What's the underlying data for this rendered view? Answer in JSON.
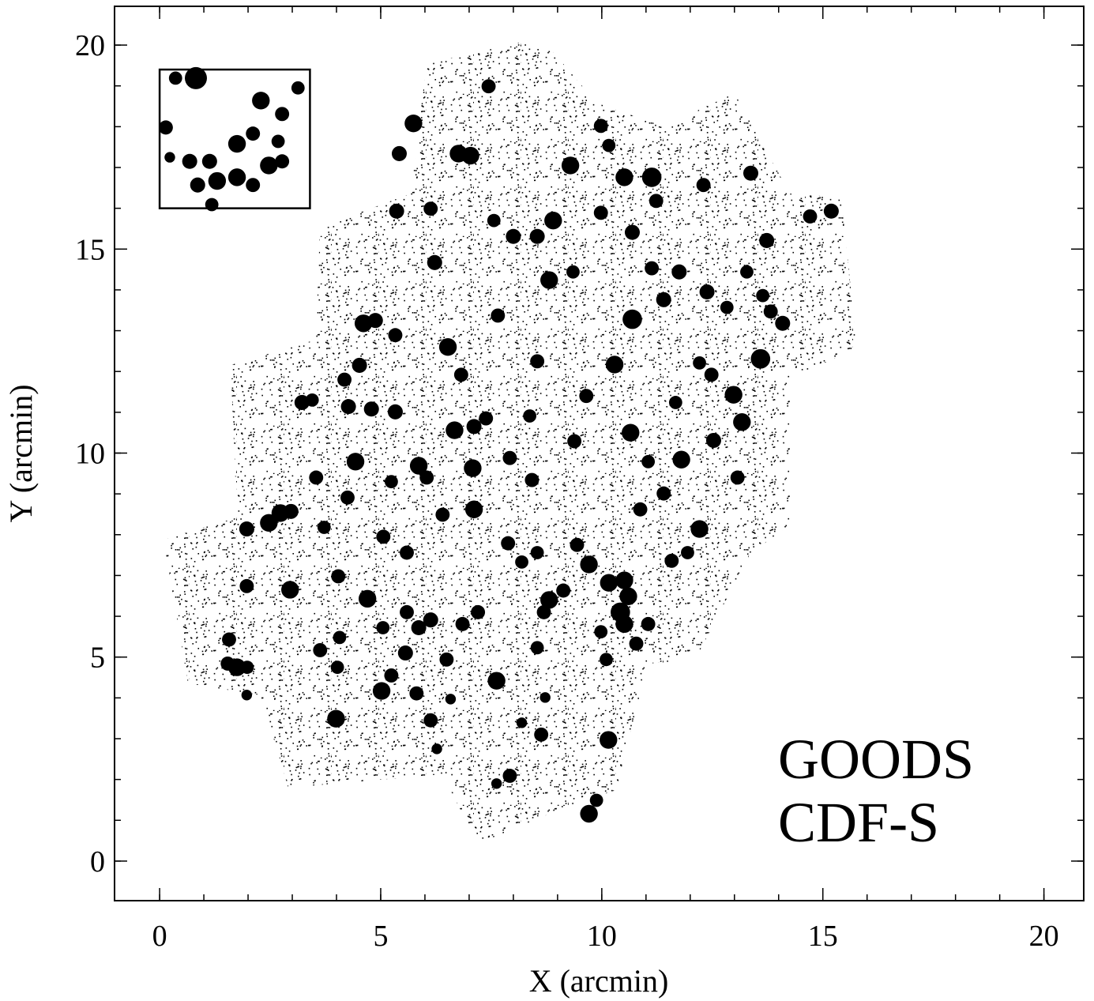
{
  "chart_data": {
    "type": "scatter",
    "xlabel": "X (arcmin)",
    "ylabel": "Y (arcmin)",
    "annotation": [
      "GOODS",
      "CDF-S"
    ],
    "xlim": [
      -1.02,
      20.9
    ],
    "ylim": [
      -0.97,
      20.95
    ],
    "xticks": [
      0,
      5,
      10,
      15,
      20
    ],
    "yticks": [
      0,
      5,
      10,
      15,
      20
    ],
    "xminor_ticks": [
      0,
      1,
      2,
      3,
      4,
      5,
      6,
      7,
      8,
      9,
      10,
      11,
      12,
      13,
      14,
      15,
      16,
      17,
      18,
      19,
      20
    ],
    "yminor_ticks": [
      0,
      1,
      2,
      3,
      4,
      5,
      6,
      7,
      8,
      9,
      10,
      11,
      12,
      13,
      14,
      15,
      16,
      17,
      18,
      19,
      20
    ],
    "color": "#000000",
    "inset_box": {
      "x": [
        0,
        3.4
      ],
      "y": [
        16,
        19.4
      ]
    },
    "x": [
      5.74,
      7.44,
      6.76,
      7.03,
      9.29,
      9.98,
      10.16,
      10.51,
      11.13,
      5.36,
      6.13,
      5.42,
      8.9,
      7.56,
      8.0,
      8.54,
      9.98,
      10.69,
      11.23,
      12.3,
      13.37,
      15.19,
      14.71,
      13.73,
      13.28,
      11.75,
      11.13,
      8.81,
      9.35,
      6.22,
      10.69,
      11.4,
      12.38,
      12.83,
      13.64,
      13.82,
      14.09,
      4.61,
      4.88,
      5.33,
      6.52,
      7.65,
      8.54,
      10.29,
      13.59,
      12.21,
      12.48,
      4.18,
      4.52,
      3.22,
      3.45,
      4.27,
      4.79,
      5.33,
      6.82,
      8.37,
      9.65,
      10.65,
      11.67,
      12.98,
      13.17,
      12.53,
      6.67,
      7.11,
      7.38,
      4.43,
      5.86,
      6.04,
      7.08,
      7.92,
      9.38,
      11.8,
      13.07,
      11.05,
      5.24,
      4.25,
      3.54,
      7.11,
      6.4,
      8.42,
      10.87,
      11.4,
      12.21,
      1.97,
      2.47,
      2.73,
      2.97,
      3.72,
      5.06,
      5.59,
      7.88,
      8.54,
      8.19,
      9.44,
      9.71,
      10.16,
      10.51,
      10.6,
      10.42,
      10.51,
      11.05,
      11.58,
      11.94,
      1.97,
      2.95,
      4.04,
      4.7,
      5.05,
      5.59,
      5.86,
      6.13,
      7.2,
      6.85,
      8.81,
      9.13,
      8.69,
      9.98,
      1.57,
      1.54,
      1.75,
      1.98,
      3.63,
      4.07,
      4.02,
      5.56,
      6.49,
      8.54,
      10.1,
      10.78,
      5.24,
      5.02,
      5.81,
      7.62,
      6.58,
      8.72,
      3.99,
      6.13,
      8.19,
      8.63,
      10.15,
      6.27,
      7.92,
      7.62,
      9.71,
      9.88,
      1.97,
      0.82,
      0.36,
      2.29,
      3.13,
      2.77,
      0.14,
      0.23,
      0.68,
      1.13,
      1.75,
      2.11,
      2.47,
      2.77,
      0.86,
      1.3,
      1.75,
      2.11,
      1.18,
      2.68
    ],
    "y": [
      18.08,
      18.99,
      17.34,
      17.29,
      17.05,
      18.02,
      17.54,
      16.76,
      16.76,
      15.93,
      15.99,
      17.34,
      15.7,
      15.7,
      15.31,
      15.31,
      15.89,
      15.41,
      16.18,
      16.57,
      16.86,
      15.93,
      15.8,
      15.21,
      14.44,
      14.44,
      14.53,
      14.24,
      14.44,
      14.67,
      13.28,
      13.76,
      13.95,
      13.57,
      13.86,
      13.47,
      13.18,
      13.18,
      13.25,
      12.89,
      12.6,
      13.37,
      12.25,
      12.17,
      12.31,
      12.21,
      11.92,
      11.8,
      12.15,
      11.24,
      11.3,
      11.14,
      11.08,
      11.01,
      11.92,
      10.91,
      11.4,
      10.5,
      11.24,
      11.43,
      10.76,
      10.31,
      10.56,
      10.65,
      10.85,
      9.79,
      9.69,
      9.4,
      9.63,
      9.88,
      10.29,
      9.84,
      9.4,
      9.79,
      9.3,
      8.91,
      9.4,
      8.62,
      8.49,
      9.34,
      8.62,
      9.01,
      8.14,
      8.14,
      8.29,
      8.53,
      8.57,
      8.18,
      7.95,
      7.56,
      7.79,
      7.56,
      7.33,
      7.75,
      7.27,
      6.82,
      6.88,
      6.49,
      6.1,
      5.81,
      5.81,
      7.36,
      7.56,
      6.74,
      6.65,
      6.98,
      6.43,
      5.72,
      6.1,
      5.72,
      5.91,
      6.1,
      5.81,
      6.4,
      6.63,
      6.1,
      5.62,
      5.43,
      4.84,
      4.75,
      4.75,
      5.17,
      5.48,
      4.75,
      5.1,
      4.94,
      5.23,
      4.94,
      5.33,
      4.55,
      4.17,
      4.11,
      4.42,
      3.97,
      4.01,
      3.49,
      3.45,
      3.39,
      3.1,
      2.97,
      2.75,
      2.09,
      1.9,
      1.16,
      1.49,
      4.07,
      19.19,
      19.19,
      18.64,
      18.95,
      18.31,
      17.98,
      17.25,
      17.15,
      17.15,
      17.58,
      17.83,
      17.05,
      17.15,
      16.57,
      16.67,
      16.76,
      16.57,
      16.09,
      17.64
    ],
    "sizes": [
      0.2,
      0.16,
      0.2,
      0.2,
      0.2,
      0.16,
      0.15,
      0.2,
      0.22,
      0.17,
      0.16,
      0.17,
      0.2,
      0.15,
      0.17,
      0.17,
      0.16,
      0.17,
      0.16,
      0.16,
      0.17,
      0.17,
      0.16,
      0.17,
      0.15,
      0.17,
      0.16,
      0.2,
      0.15,
      0.17,
      0.22,
      0.17,
      0.17,
      0.15,
      0.15,
      0.16,
      0.17,
      0.2,
      0.17,
      0.16,
      0.2,
      0.16,
      0.16,
      0.2,
      0.22,
      0.15,
      0.16,
      0.16,
      0.17,
      0.17,
      0.15,
      0.17,
      0.17,
      0.17,
      0.16,
      0.15,
      0.16,
      0.2,
      0.15,
      0.2,
      0.2,
      0.17,
      0.2,
      0.17,
      0.16,
      0.2,
      0.2,
      0.16,
      0.2,
      0.16,
      0.16,
      0.2,
      0.16,
      0.15,
      0.15,
      0.16,
      0.16,
      0.2,
      0.16,
      0.16,
      0.16,
      0.16,
      0.2,
      0.17,
      0.2,
      0.2,
      0.17,
      0.15,
      0.16,
      0.16,
      0.16,
      0.15,
      0.15,
      0.16,
      0.2,
      0.2,
      0.2,
      0.2,
      0.22,
      0.2,
      0.16,
      0.16,
      0.15,
      0.16,
      0.2,
      0.16,
      0.2,
      0.15,
      0.16,
      0.17,
      0.17,
      0.16,
      0.16,
      0.2,
      0.16,
      0.16,
      0.15,
      0.16,
      0.16,
      0.2,
      0.15,
      0.16,
      0.15,
      0.15,
      0.17,
      0.16,
      0.15,
      0.15,
      0.16,
      0.16,
      0.2,
      0.16,
      0.2,
      0.12,
      0.12,
      0.2,
      0.16,
      0.12,
      0.16,
      0.2,
      0.12,
      0.16,
      0.12,
      0.2,
      0.15,
      0.12,
      0.25,
      0.15,
      0.2,
      0.15,
      0.16,
      0.16,
      0.12,
      0.17,
      0.17,
      0.2,
      0.16,
      0.2,
      0.16,
      0.17,
      0.2,
      0.2,
      0.16,
      0.15,
      0.15
    ]
  }
}
